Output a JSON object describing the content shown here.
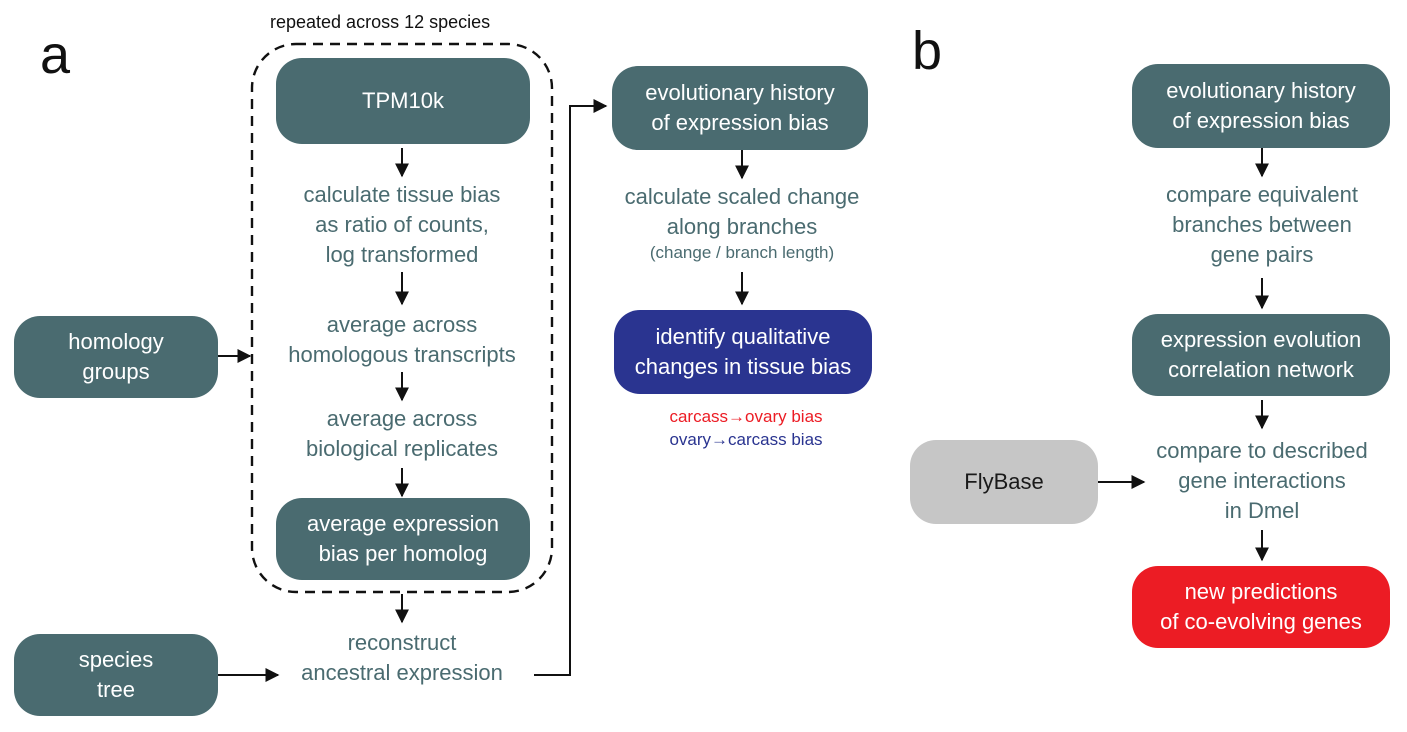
{
  "panel_a": {
    "letter": "a",
    "repeat_label": "repeated across 12 species",
    "tpm_box": "TPM10k",
    "step_tissue_bias": [
      "calculate tissue bias",
      "as ratio of counts,",
      "log transformed"
    ],
    "step_avg_transcripts": [
      "average across",
      "homologous transcripts"
    ],
    "step_avg_replicates": [
      "average across",
      "biological replicates"
    ],
    "avg_bias_box": [
      "average expression",
      "bias per homolog"
    ],
    "homology_box": [
      "homology",
      "groups"
    ],
    "species_box": [
      "species",
      "tree"
    ],
    "step_reconstruct": [
      "reconstruct",
      "ancestral expression"
    ],
    "evo_history_box": [
      "evolutionary history",
      "of expression bias"
    ],
    "step_scaled_change": [
      "calculate scaled change",
      "along branches"
    ],
    "step_scaled_change_note": "(change / branch length)",
    "qualitative_box": [
      "identify qualitative",
      "changes in tissue bias"
    ],
    "legend": {
      "carcass_ovary": "carcass→ovary bias",
      "ovary_carcass": "ovary→carcass bias"
    }
  },
  "panel_b": {
    "letter": "b",
    "evo_history_box": [
      "evolutionary history",
      "of expression bias"
    ],
    "step_compare_branches": [
      "compare equivalent",
      "branches between",
      "gene pairs"
    ],
    "network_box": [
      "expression evolution",
      "correlation network"
    ],
    "flybase_box": "FlyBase",
    "step_compare_interactions": [
      "compare to described",
      "gene interactions",
      "in Dmel"
    ],
    "predictions_box": [
      "new predictions",
      "of co-evolving genes"
    ]
  },
  "colors": {
    "teal": "#4a6b70",
    "blue": "#2a3490",
    "red": "#ec1c24",
    "gray": "#c6c6c6"
  }
}
